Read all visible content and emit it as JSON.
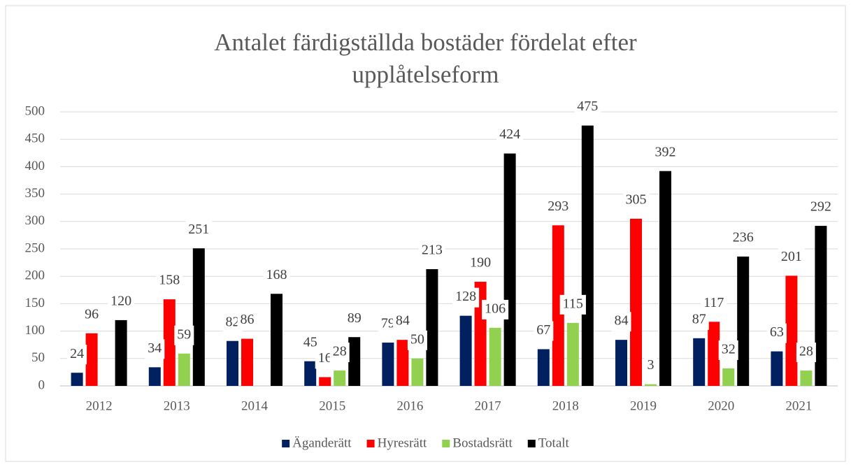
{
  "chart_data": {
    "type": "bar",
    "title": "Antalet färdigställda bostäder fördelat efter upplåtelseform",
    "categories": [
      "2012",
      "2013",
      "2014",
      "2015",
      "2016",
      "2017",
      "2018",
      "2019",
      "2020",
      "2021"
    ],
    "series": [
      {
        "name": "Äganderätt",
        "color": "#002060",
        "values": [
          24,
          34,
          82,
          45,
          79,
          128,
          67,
          84,
          87,
          63
        ]
      },
      {
        "name": "Hyresrätt",
        "color": "#ff0000",
        "values": [
          96,
          158,
          86,
          16,
          84,
          190,
          293,
          305,
          117,
          201
        ]
      },
      {
        "name": "Bostadsrätt",
        "color": "#92d050",
        "values": [
          null,
          59,
          null,
          28,
          50,
          106,
          115,
          3,
          32,
          28
        ]
      },
      {
        "name": "Totalt",
        "color": "#000000",
        "values": [
          120,
          251,
          168,
          89,
          213,
          424,
          475,
          392,
          236,
          292
        ]
      }
    ],
    "ylim": [
      0,
      500
    ],
    "yticks": [
      0,
      50,
      100,
      150,
      200,
      250,
      300,
      350,
      400,
      450,
      500
    ],
    "legend": "bottom"
  }
}
